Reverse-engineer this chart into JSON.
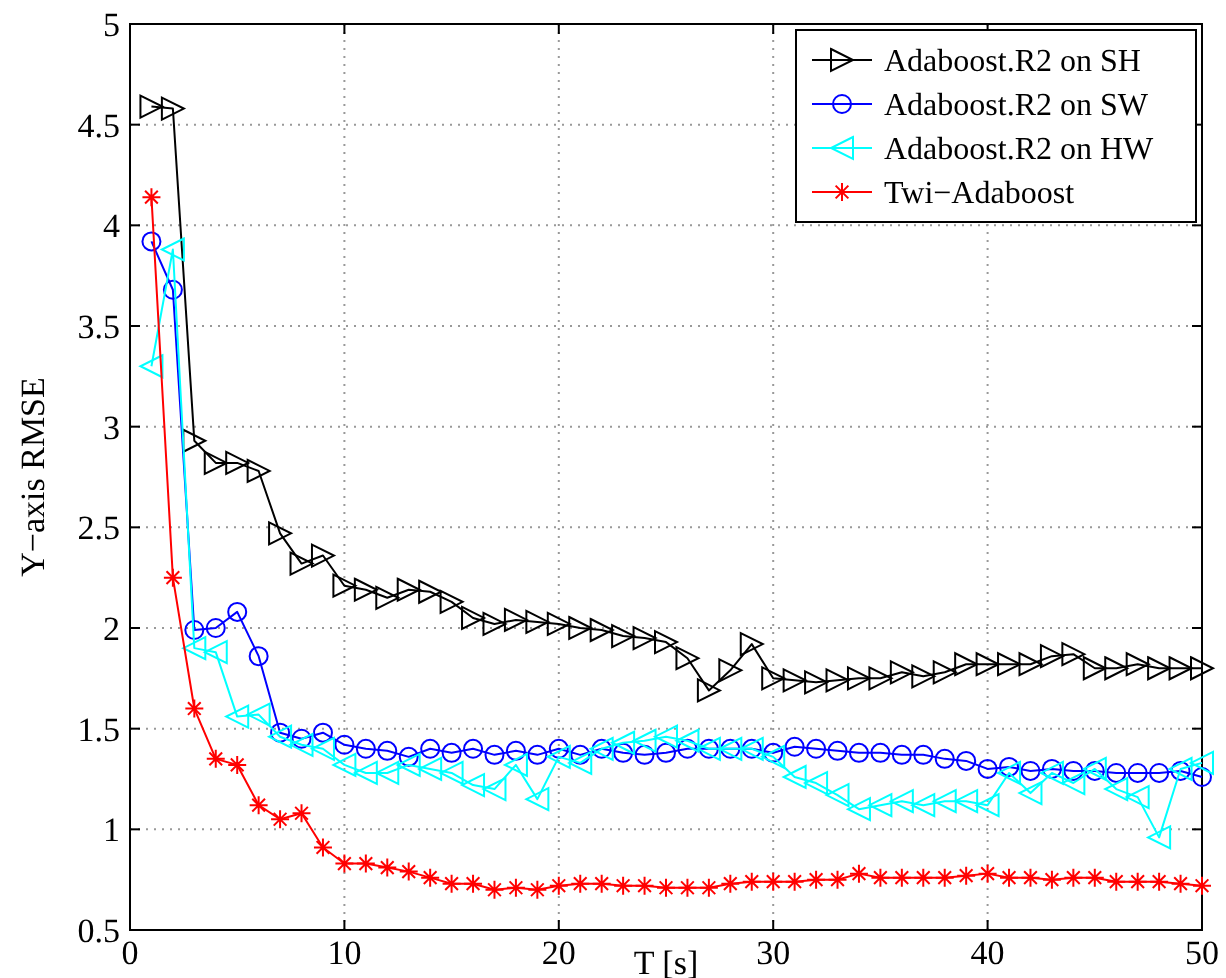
{
  "chart_data": {
    "type": "line",
    "xlabel": "T [s]",
    "ylabel": "Y−axis RMSE",
    "x": [
      1,
      2,
      3,
      4,
      5,
      6,
      7,
      8,
      9,
      10,
      11,
      12,
      13,
      14,
      15,
      16,
      17,
      18,
      19,
      20,
      21,
      22,
      23,
      24,
      25,
      26,
      27,
      28,
      29,
      30,
      31,
      32,
      33,
      34,
      35,
      36,
      37,
      38,
      39,
      40,
      41,
      42,
      43,
      44,
      45,
      46,
      47,
      48,
      49,
      50
    ],
    "xlim": [
      0,
      50
    ],
    "xticks": [
      0,
      10,
      20,
      30,
      40,
      50
    ],
    "ylim": [
      0.5,
      5
    ],
    "yticks": [
      0.5,
      1,
      1.5,
      2,
      2.5,
      3,
      3.5,
      4,
      4.5,
      5
    ],
    "grid": true,
    "legend": "top right",
    "line_style": "solid",
    "series": [
      {
        "name": "Adaboost.R2 on SH",
        "color": "#000000",
        "marker": "triangle-right",
        "values": [
          4.59,
          4.58,
          2.93,
          2.82,
          2.82,
          2.78,
          2.47,
          2.32,
          2.36,
          2.21,
          2.19,
          2.15,
          2.19,
          2.18,
          2.13,
          2.05,
          2.02,
          2.04,
          2.03,
          2.02,
          2.0,
          1.99,
          1.96,
          1.95,
          1.93,
          1.85,
          1.69,
          1.79,
          1.92,
          1.75,
          1.74,
          1.73,
          1.74,
          1.75,
          1.75,
          1.78,
          1.76,
          1.78,
          1.82,
          1.82,
          1.82,
          1.82,
          1.86,
          1.87,
          1.8,
          1.8,
          1.82,
          1.8,
          1.8,
          1.8
        ]
      },
      {
        "name": "Adaboost.R2 on SW",
        "color": "#0000ff",
        "marker": "circle",
        "values": [
          3.92,
          3.68,
          1.99,
          2.0,
          2.08,
          1.86,
          1.48,
          1.45,
          1.48,
          1.42,
          1.4,
          1.39,
          1.36,
          1.4,
          1.38,
          1.4,
          1.37,
          1.39,
          1.37,
          1.4,
          1.37,
          1.4,
          1.38,
          1.37,
          1.38,
          1.4,
          1.4,
          1.4,
          1.4,
          1.38,
          1.41,
          1.4,
          1.39,
          1.38,
          1.38,
          1.37,
          1.37,
          1.35,
          1.34,
          1.3,
          1.31,
          1.29,
          1.3,
          1.29,
          1.29,
          1.28,
          1.28,
          1.28,
          1.29,
          1.26
        ]
      },
      {
        "name": "Adaboost.R2 on HW",
        "color": "#00ffff",
        "marker": "triangle-left",
        "values": [
          3.3,
          3.88,
          1.9,
          1.88,
          1.56,
          1.57,
          1.46,
          1.42,
          1.4,
          1.32,
          1.28,
          1.28,
          1.32,
          1.3,
          1.28,
          1.22,
          1.2,
          1.32,
          1.15,
          1.36,
          1.33,
          1.4,
          1.43,
          1.44,
          1.46,
          1.44,
          1.4,
          1.4,
          1.4,
          1.36,
          1.26,
          1.23,
          1.17,
          1.1,
          1.12,
          1.14,
          1.12,
          1.14,
          1.14,
          1.12,
          1.28,
          1.18,
          1.28,
          1.23,
          1.3,
          1.2,
          1.16,
          0.96,
          1.3,
          1.33
        ]
      },
      {
        "name": "Twi−Adaboost",
        "color": "#ff0000",
        "marker": "cross",
        "values": [
          4.14,
          2.25,
          1.6,
          1.35,
          1.32,
          1.12,
          1.05,
          1.08,
          0.91,
          0.83,
          0.83,
          0.81,
          0.79,
          0.76,
          0.73,
          0.73,
          0.7,
          0.71,
          0.7,
          0.72,
          0.73,
          0.73,
          0.72,
          0.72,
          0.71,
          0.71,
          0.71,
          0.73,
          0.74,
          0.74,
          0.74,
          0.75,
          0.75,
          0.78,
          0.76,
          0.76,
          0.76,
          0.76,
          0.77,
          0.78,
          0.76,
          0.76,
          0.75,
          0.76,
          0.76,
          0.74,
          0.74,
          0.74,
          0.73,
          0.72
        ]
      }
    ]
  }
}
